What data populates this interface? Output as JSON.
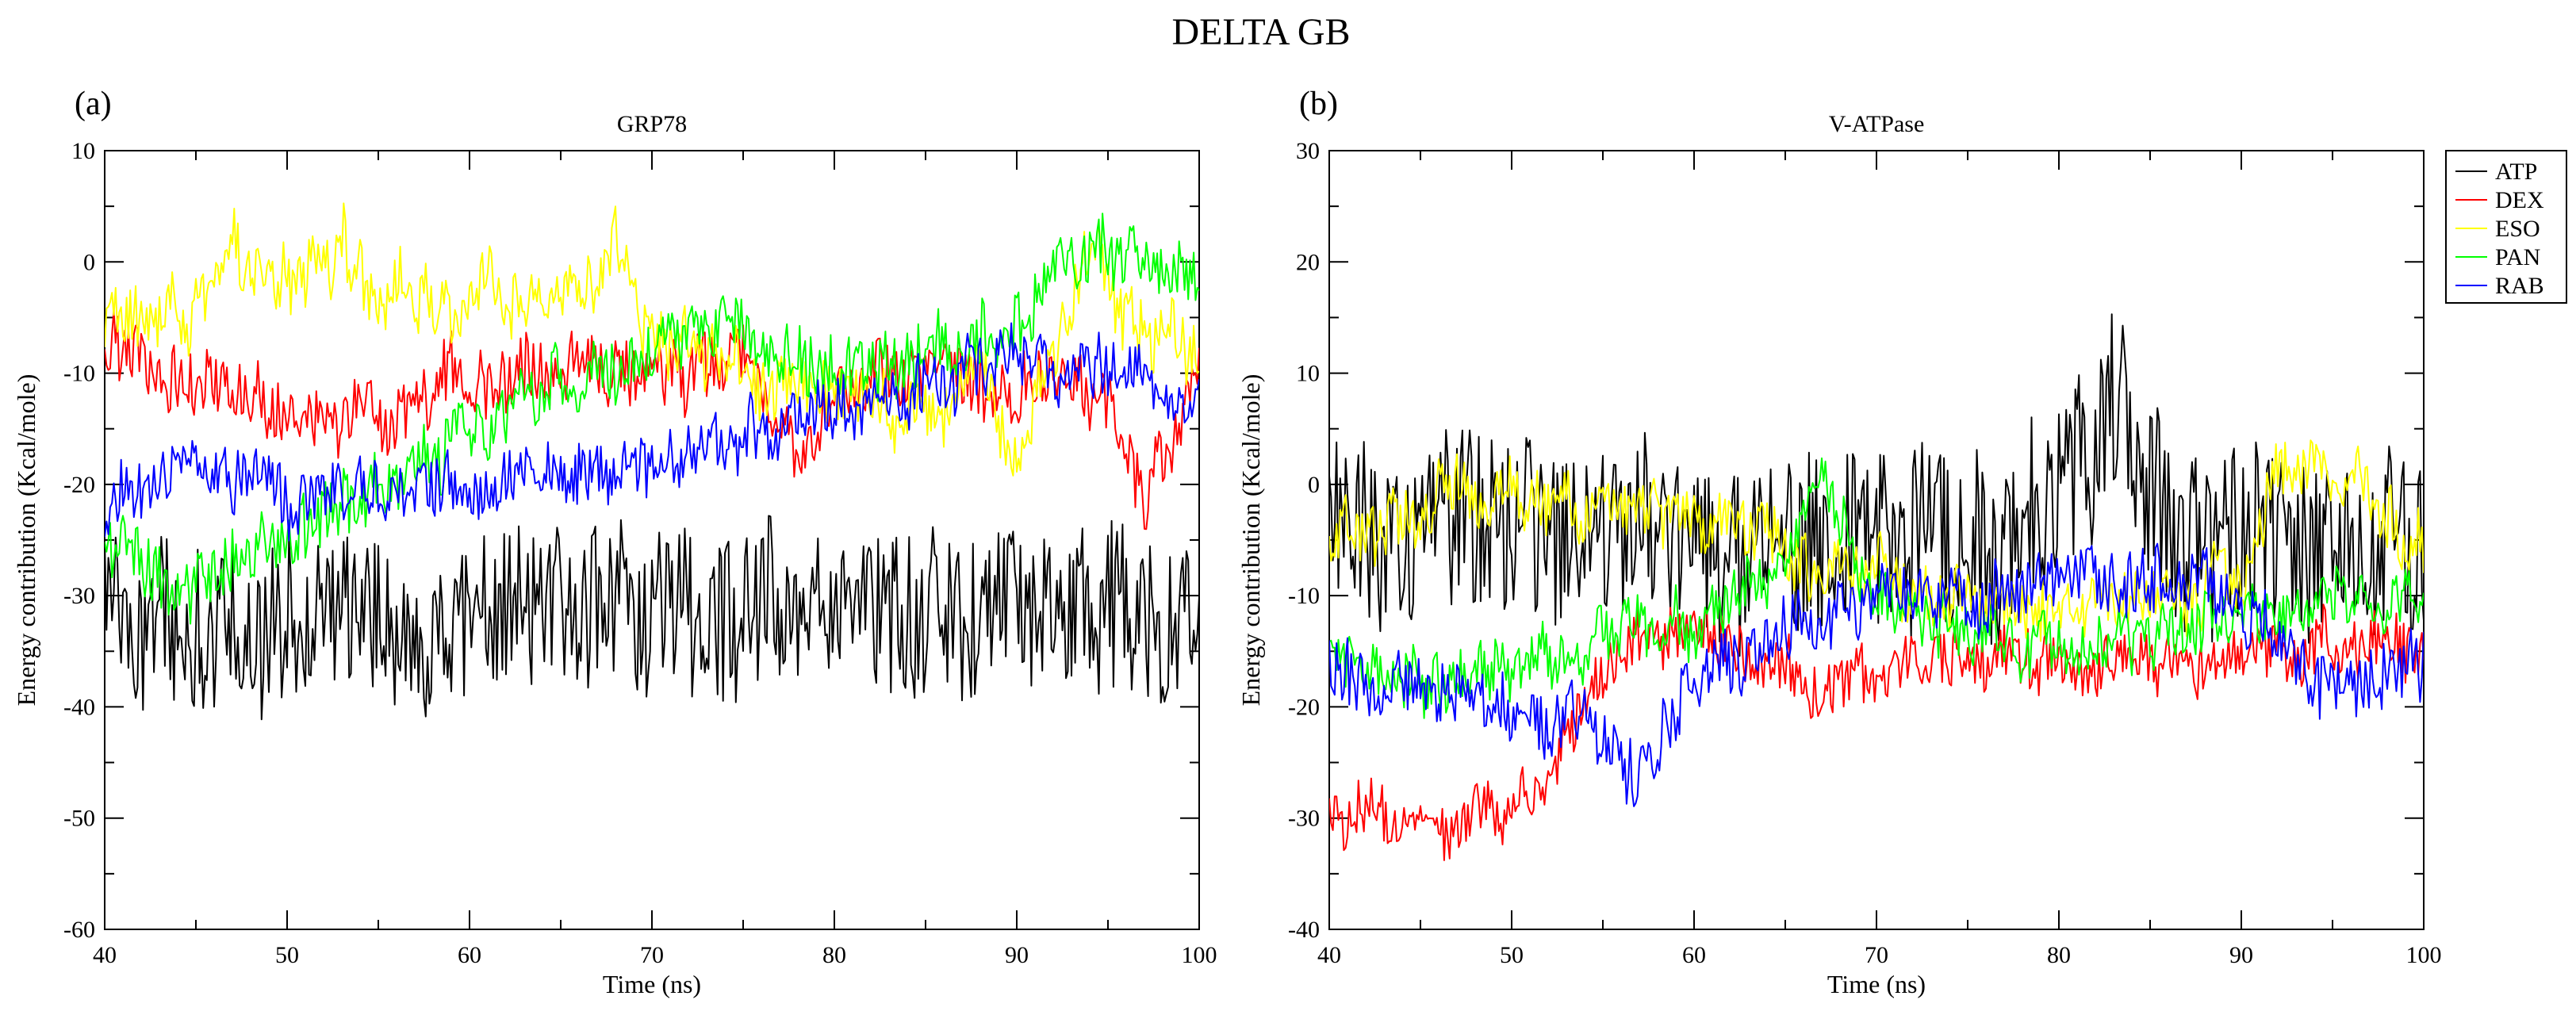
{
  "figure_title": "DELTA GB",
  "legend": [
    {
      "label": "ATP",
      "color": "#000000"
    },
    {
      "label": "DEX",
      "color": "#ff0000"
    },
    {
      "label": "ESO",
      "color": "#ffff00"
    },
    {
      "label": "PAN",
      "color": "#00ff00"
    },
    {
      "label": "RAB",
      "color": "#0000ff"
    }
  ],
  "chart_data": [
    {
      "type": "line",
      "panel_label": "(a)",
      "title": "GRP78",
      "xlabel": "Time (ns)",
      "ylabel": "Energy contribution (Kcal/mole)",
      "xlim": [
        40,
        100
      ],
      "ylim": [
        -60,
        10
      ],
      "xticks": [
        40,
        50,
        60,
        70,
        80,
        90,
        100
      ],
      "yticks": [
        -60,
        -50,
        -40,
        -30,
        -20,
        -10,
        0,
        10
      ],
      "series": [
        {
          "name": "ATP",
          "color": "#000000",
          "noise": 7.5,
          "wobble": 2.0,
          "knots": [
            [
              40,
              -33
            ],
            [
              50,
              -33
            ],
            [
              60,
              -32
            ],
            [
              70,
              -31
            ],
            [
              80,
              -32
            ],
            [
              90,
              -32
            ],
            [
              100,
              -31
            ]
          ]
        },
        {
          "name": "DEX",
          "color": "#ff0000",
          "noise": 2.8,
          "wobble": 1.5,
          "knots": [
            [
              40,
              -8
            ],
            [
              45,
              -11
            ],
            [
              50,
              -13
            ],
            [
              55,
              -14
            ],
            [
              60,
              -11
            ],
            [
              65,
              -10
            ],
            [
              70,
              -10
            ],
            [
              75,
              -9
            ],
            [
              78,
              -18
            ],
            [
              80,
              -11
            ],
            [
              85,
              -10
            ],
            [
              90,
              -11
            ],
            [
              95,
              -12
            ],
            [
              97,
              -21
            ],
            [
              99,
              -15
            ],
            [
              100,
              -8
            ]
          ]
        },
        {
          "name": "ESO",
          "color": "#ffff00",
          "noise": 2.5,
          "wobble": 2.5,
          "knots": [
            [
              40,
              -7
            ],
            [
              45,
              -5
            ],
            [
              47,
              0
            ],
            [
              50,
              -1
            ],
            [
              53,
              1
            ],
            [
              55,
              -5
            ],
            [
              60,
              -4
            ],
            [
              65,
              -3
            ],
            [
              68,
              1
            ],
            [
              70,
              -6
            ],
            [
              75,
              -10
            ],
            [
              80,
              -12
            ],
            [
              85,
              -14
            ],
            [
              88,
              -9
            ],
            [
              90,
              -18
            ],
            [
              92,
              -8
            ],
            [
              94,
              0
            ],
            [
              97,
              -6
            ],
            [
              100,
              -8
            ]
          ]
        },
        {
          "name": "PAN",
          "color": "#00ff00",
          "noise": 2.8,
          "wobble": 1.5,
          "knots": [
            [
              40,
              -26
            ],
            [
              45,
              -29
            ],
            [
              50,
              -25
            ],
            [
              55,
              -20
            ],
            [
              60,
              -15
            ],
            [
              65,
              -10
            ],
            [
              70,
              -8
            ],
            [
              75,
              -5
            ],
            [
              80,
              -10
            ],
            [
              85,
              -9
            ],
            [
              90,
              -6
            ],
            [
              93,
              0
            ],
            [
              95,
              0
            ],
            [
              100,
              0
            ]
          ]
        },
        {
          "name": "RAB",
          "color": "#0000ff",
          "noise": 2.5,
          "wobble": 1.5,
          "knots": [
            [
              40,
              -23
            ],
            [
              45,
              -17
            ],
            [
              50,
              -21
            ],
            [
              55,
              -20
            ],
            [
              60,
              -20
            ],
            [
              65,
              -20
            ],
            [
              70,
              -18
            ],
            [
              75,
              -16
            ],
            [
              80,
              -13
            ],
            [
              85,
              -11
            ],
            [
              90,
              -9
            ],
            [
              95,
              -10
            ],
            [
              100,
              -13
            ]
          ]
        }
      ]
    },
    {
      "type": "line",
      "panel_label": "(b)",
      "title": "V-ATPase",
      "xlabel": "Time (ns)",
      "ylabel": "Energy contribution (Kcal/mole)",
      "xlim": [
        40,
        100
      ],
      "ylim": [
        -40,
        30
      ],
      "xticks": [
        40,
        50,
        60,
        70,
        80,
        90,
        100
      ],
      "yticks": [
        -40,
        -30,
        -20,
        -10,
        0,
        10,
        20,
        30
      ],
      "series": [
        {
          "name": "ATP",
          "color": "#000000",
          "noise": 8.0,
          "wobble": 2.0,
          "knots": [
            [
              40,
              -5
            ],
            [
              45,
              -4
            ],
            [
              50,
              -3
            ],
            [
              55,
              -5
            ],
            [
              60,
              -4
            ],
            [
              65,
              -7
            ],
            [
              70,
              -4
            ],
            [
              75,
              -6
            ],
            [
              80,
              -2
            ],
            [
              83,
              8
            ],
            [
              86,
              -5
            ],
            [
              90,
              -4
            ],
            [
              95,
              -5
            ],
            [
              100,
              -6
            ]
          ]
        },
        {
          "name": "DEX",
          "color": "#ff0000",
          "noise": 2.5,
          "wobble": 1.5,
          "knots": [
            [
              40,
              -30
            ],
            [
              45,
              -30
            ],
            [
              50,
              -30
            ],
            [
              53,
              -23
            ],
            [
              56,
              -15
            ],
            [
              60,
              -13
            ],
            [
              65,
              -18
            ],
            [
              70,
              -18
            ],
            [
              75,
              -15
            ],
            [
              80,
              -17
            ],
            [
              85,
              -16
            ],
            [
              90,
              -15
            ],
            [
              95,
              -14
            ],
            [
              100,
              -15
            ]
          ]
        },
        {
          "name": "ESO",
          "color": "#ffff00",
          "noise": 2.5,
          "wobble": 2.0,
          "knots": [
            [
              40,
              -5
            ],
            [
              45,
              -3
            ],
            [
              47,
              0
            ],
            [
              50,
              0
            ],
            [
              55,
              -2
            ],
            [
              60,
              -3
            ],
            [
              65,
              -6
            ],
            [
              70,
              -8
            ],
            [
              75,
              -10
            ],
            [
              80,
              -13
            ],
            [
              85,
              -10
            ],
            [
              90,
              -8
            ],
            [
              92,
              2
            ],
            [
              95,
              1
            ],
            [
              100,
              -6
            ]
          ]
        },
        {
          "name": "PAN",
          "color": "#00ff00",
          "noise": 2.5,
          "wobble": 1.5,
          "knots": [
            [
              40,
              -15
            ],
            [
              45,
              -18
            ],
            [
              50,
              -17
            ],
            [
              55,
              -14
            ],
            [
              60,
              -12
            ],
            [
              65,
              -8
            ],
            [
              67,
              0
            ],
            [
              70,
              -10
            ],
            [
              75,
              -13
            ],
            [
              80,
              -15
            ],
            [
              85,
              -14
            ],
            [
              90,
              -12
            ],
            [
              95,
              -10
            ],
            [
              100,
              -11
            ]
          ]
        },
        {
          "name": "RAB",
          "color": "#0000ff",
          "noise": 2.8,
          "wobble": 1.5,
          "knots": [
            [
              40,
              -16
            ],
            [
              45,
              -18
            ],
            [
              50,
              -20
            ],
            [
              55,
              -23
            ],
            [
              57,
              -26
            ],
            [
              60,
              -18
            ],
            [
              65,
              -13
            ],
            [
              70,
              -11
            ],
            [
              75,
              -10
            ],
            [
              80,
              -9
            ],
            [
              85,
              -8
            ],
            [
              90,
              -11
            ],
            [
              95,
              -18
            ],
            [
              100,
              -17
            ]
          ]
        }
      ]
    }
  ]
}
